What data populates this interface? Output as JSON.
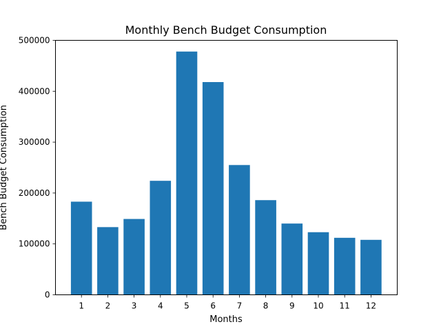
{
  "chart_data": {
    "type": "bar",
    "title": "Monthly Bench Budget Consumption",
    "xlabel": "Months",
    "ylabel": "Bench Budget Consumption",
    "categories": [
      "1",
      "2",
      "3",
      "4",
      "5",
      "6",
      "7",
      "8",
      "9",
      "10",
      "11",
      "12"
    ],
    "values": [
      183000,
      133000,
      149000,
      224000,
      478000,
      418000,
      255000,
      186000,
      140000,
      123000,
      112000,
      108000
    ],
    "ylim": [
      0,
      500000
    ],
    "yticks": [
      "0",
      "100000",
      "200000",
      "300000",
      "400000",
      "500000"
    ],
    "bar_color": "#1f77b4",
    "grid": false,
    "legend": "none"
  }
}
